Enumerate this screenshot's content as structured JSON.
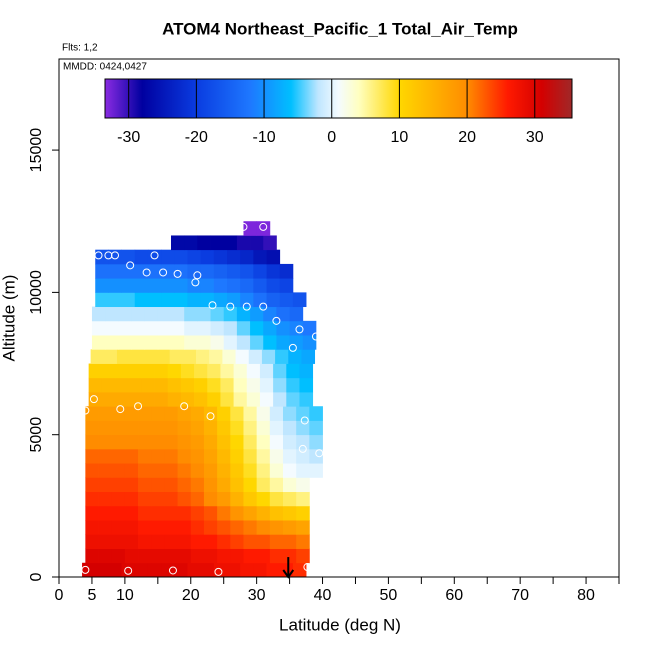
{
  "chart_data": {
    "type": "heatmap",
    "title": "ATOM4 Northeast_Pacific_1 Total_Air_Temp",
    "flights": "Flts: 1,2",
    "dates": "MMDD: 0424,0427",
    "xlabel": "Latitude (deg N)",
    "ylabel": "Altitude (m)",
    "xlim": [
      0,
      85
    ],
    "ylim": [
      0,
      18200
    ],
    "xticks": [
      0,
      5,
      10,
      20,
      30,
      40,
      50,
      60,
      70,
      80
    ],
    "xminor": [
      15,
      25,
      35,
      45,
      55,
      65,
      75,
      85
    ],
    "yticks": [
      0,
      5000,
      10000,
      15000
    ],
    "colorbar": {
      "lim": [
        -33.5,
        35.5
      ],
      "ticks": [
        -30,
        -20,
        -10,
        0,
        10,
        20,
        30
      ],
      "stops": [
        [
          -33.5,
          "#8a2be2"
        ],
        [
          -28,
          "#0000a0"
        ],
        [
          -20,
          "#0a3ce0"
        ],
        [
          -12,
          "#1e78ff"
        ],
        [
          -6,
          "#00bfff"
        ],
        [
          -2,
          "#bfe6ff"
        ],
        [
          1,
          "#f4fbff"
        ],
        [
          4,
          "#ffffc0"
        ],
        [
          10,
          "#ffd700"
        ],
        [
          20,
          "#ff8c00"
        ],
        [
          26,
          "#ff1a00"
        ],
        [
          31,
          "#d40000"
        ],
        [
          35.5,
          "#a02828"
        ]
      ]
    },
    "cell_width": 2,
    "rows": [
      {
        "alt": [
          0,
          500
        ],
        "lat0": 3.5,
        "values": [
          31,
          31,
          31,
          30,
          30,
          30,
          30,
          30,
          29,
          29,
          28,
          28,
          27,
          27,
          26,
          26,
          25
        ]
      },
      {
        "alt": [
          500,
          1000
        ],
        "lat0": 4,
        "values": [
          30,
          30,
          30,
          29,
          29,
          29,
          29,
          29,
          28,
          28,
          27,
          27,
          26,
          26,
          25,
          25,
          24
        ]
      },
      {
        "alt": [
          1000,
          1500
        ],
        "lat0": 4,
        "values": [
          28,
          28,
          28,
          28,
          27,
          27,
          27,
          27,
          26,
          26,
          25,
          24,
          23,
          23,
          22,
          22,
          21
        ]
      },
      {
        "alt": [
          1500,
          2000
        ],
        "lat0": 4,
        "values": [
          27,
          27,
          27,
          27,
          26,
          26,
          26,
          26,
          25,
          24,
          23,
          22,
          21,
          20,
          19,
          18,
          17
        ]
      },
      {
        "alt": [
          2000,
          2500
        ],
        "lat0": 4,
        "values": [
          26,
          26,
          26,
          26,
          25,
          25,
          25,
          25,
          24,
          23,
          21,
          19,
          17,
          15,
          13,
          12,
          11
        ]
      },
      {
        "alt": [
          2500,
          3000
        ],
        "lat0": 4,
        "values": [
          25,
          25,
          25,
          25,
          24,
          24,
          24,
          23,
          22,
          20,
          18,
          15,
          12,
          10,
          8,
          7,
          6
        ]
      },
      {
        "alt": [
          3000,
          3500
        ],
        "lat0": 4,
        "values": [
          24,
          24,
          24,
          24,
          23,
          23,
          23,
          22,
          21,
          19,
          16,
          13,
          10,
          7,
          5,
          3,
          2
        ]
      },
      {
        "alt": [
          3500,
          4000
        ],
        "lat0": 4,
        "values": [
          23,
          23,
          23,
          23,
          22,
          22,
          22,
          21,
          20,
          18,
          15,
          12,
          9,
          6,
          3,
          1,
          0,
          0
        ]
      },
      {
        "alt": [
          4000,
          4500
        ],
        "lat0": 4,
        "values": [
          22,
          22,
          22,
          22,
          21,
          21,
          21,
          20,
          19,
          17,
          14,
          11,
          8,
          5,
          2,
          0,
          -1,
          -2
        ]
      },
      {
        "alt": [
          4500,
          5000
        ],
        "lat0": 4,
        "values": [
          20,
          20,
          20,
          20,
          20,
          20,
          20,
          19,
          18,
          16,
          13,
          10,
          7,
          4,
          1,
          -1,
          -2,
          -3
        ]
      },
      {
        "alt": [
          5000,
          5500
        ],
        "lat0": 4,
        "values": [
          19,
          19,
          19,
          19,
          19,
          19,
          19,
          18,
          17,
          15,
          12,
          9,
          6,
          3,
          0,
          -2,
          -3,
          -4
        ]
      },
      {
        "alt": [
          5500,
          6000
        ],
        "lat0": 4,
        "values": [
          18,
          18,
          18,
          18,
          18,
          18,
          18,
          17,
          16,
          14,
          11,
          8,
          5,
          2,
          -1,
          -3,
          -4,
          -5
        ]
      },
      {
        "alt": [
          6000,
          6500
        ],
        "lat0": 4.5,
        "values": [
          16,
          16,
          16,
          16,
          16,
          16,
          15,
          14,
          13,
          11,
          8,
          5,
          3,
          1,
          -2,
          -4,
          -5
        ]
      },
      {
        "alt": [
          6500,
          7000
        ],
        "lat0": 4.5,
        "values": [
          14,
          14,
          14,
          14,
          14,
          14,
          13,
          12,
          11,
          9,
          7,
          4,
          2,
          0,
          -3,
          -5,
          -6
        ]
      },
      {
        "alt": [
          7000,
          7500
        ],
        "lat0": 4.5,
        "values": [
          11,
          11,
          11,
          11,
          11,
          11,
          10,
          9,
          8,
          7,
          5,
          3,
          1,
          -1,
          -4,
          -6,
          -7
        ]
      },
      {
        "alt": [
          7500,
          8000
        ],
        "lat0": 4.8,
        "values": [
          7,
          7,
          8,
          8,
          8,
          8,
          7,
          7,
          6,
          5,
          3,
          1,
          -1,
          -3,
          -5,
          -7,
          -8
        ]
      },
      {
        "alt": [
          8000,
          8500
        ],
        "lat0": 5,
        "values": [
          4,
          4,
          4,
          4,
          4,
          4,
          4,
          3,
          3,
          2,
          0,
          -2,
          -4,
          -6,
          -8,
          -9,
          -10
        ]
      },
      {
        "alt": [
          8500,
          9000
        ],
        "lat0": 5,
        "values": [
          1,
          1,
          1,
          1,
          1,
          1,
          1,
          0,
          0,
          -1,
          -2,
          -4,
          -6,
          -8,
          -10,
          -11,
          -12
        ]
      },
      {
        "alt": [
          9000,
          9500
        ],
        "lat0": 5,
        "values": [
          -2,
          -2,
          -2,
          -2,
          -2,
          -2,
          -2,
          -3,
          -3,
          -4,
          -5,
          -7,
          -9,
          -11,
          -13,
          -14
        ]
      },
      {
        "alt": [
          9500,
          10000
        ],
        "lat0": 5.5,
        "values": [
          -5,
          -5,
          -5,
          -6,
          -6,
          -6,
          -6,
          -7,
          -7,
          -8,
          -9,
          -11,
          -13,
          -15,
          -16,
          -17
        ]
      },
      {
        "alt": [
          10000,
          10500
        ],
        "lat0": 5.5,
        "values": [
          -10,
          -10,
          -10,
          -10,
          -10,
          -10,
          -10,
          -11,
          -11,
          -12,
          -13,
          -14,
          -16,
          -18,
          -19
        ]
      },
      {
        "alt": [
          10500,
          11000
        ],
        "lat0": 5.5,
        "values": [
          -13,
          -13,
          -13,
          -13,
          -13,
          -13,
          -13,
          -14,
          -14,
          -15,
          -16,
          -17,
          -19,
          -21,
          -22
        ]
      },
      {
        "alt": [
          11000,
          11500
        ],
        "lat0": 5.5,
        "values": [
          -17,
          -17,
          -17,
          -18,
          -18,
          -18,
          -18,
          -19,
          -20,
          -21,
          -22,
          -23,
          -25,
          -26
        ]
      },
      {
        "alt": [
          11500,
          12000
        ],
        "lat0": 17,
        "values": [
          -27,
          -27,
          -28,
          -28,
          -28,
          -29,
          -29,
          -30
        ]
      },
      {
        "alt": [
          12000,
          12500
        ],
        "lat0": 28,
        "values": [
          -33,
          -33
        ]
      }
    ],
    "points": [
      [
        4,
        250
      ],
      [
        10.5,
        220
      ],
      [
        17.3,
        230
      ],
      [
        24.2,
        180
      ],
      [
        37.7,
        350
      ],
      [
        4,
        5850
      ],
      [
        5.3,
        6250
      ],
      [
        9.3,
        5900
      ],
      [
        12,
        6000
      ],
      [
        19,
        6000
      ],
      [
        23,
        5650
      ],
      [
        37.3,
        5500
      ],
      [
        37,
        4500
      ],
      [
        39.5,
        4350
      ],
      [
        35.5,
        8050
      ],
      [
        36.5,
        8700
      ],
      [
        39,
        8450
      ],
      [
        33,
        9000
      ],
      [
        23.3,
        9550
      ],
      [
        26,
        9500
      ],
      [
        28.5,
        9500
      ],
      [
        31,
        9500
      ],
      [
        21,
        10600
      ],
      [
        20.7,
        10350
      ],
      [
        18,
        10650
      ],
      [
        15.8,
        10700
      ],
      [
        13.3,
        10700
      ],
      [
        10.8,
        10950
      ],
      [
        6,
        11300
      ],
      [
        7.5,
        11300
      ],
      [
        8.5,
        11300
      ],
      [
        14.5,
        11300
      ],
      [
        28,
        12300
      ],
      [
        31,
        12300
      ]
    ],
    "arrow": {
      "lat": 34.8,
      "alt": 700
    }
  }
}
